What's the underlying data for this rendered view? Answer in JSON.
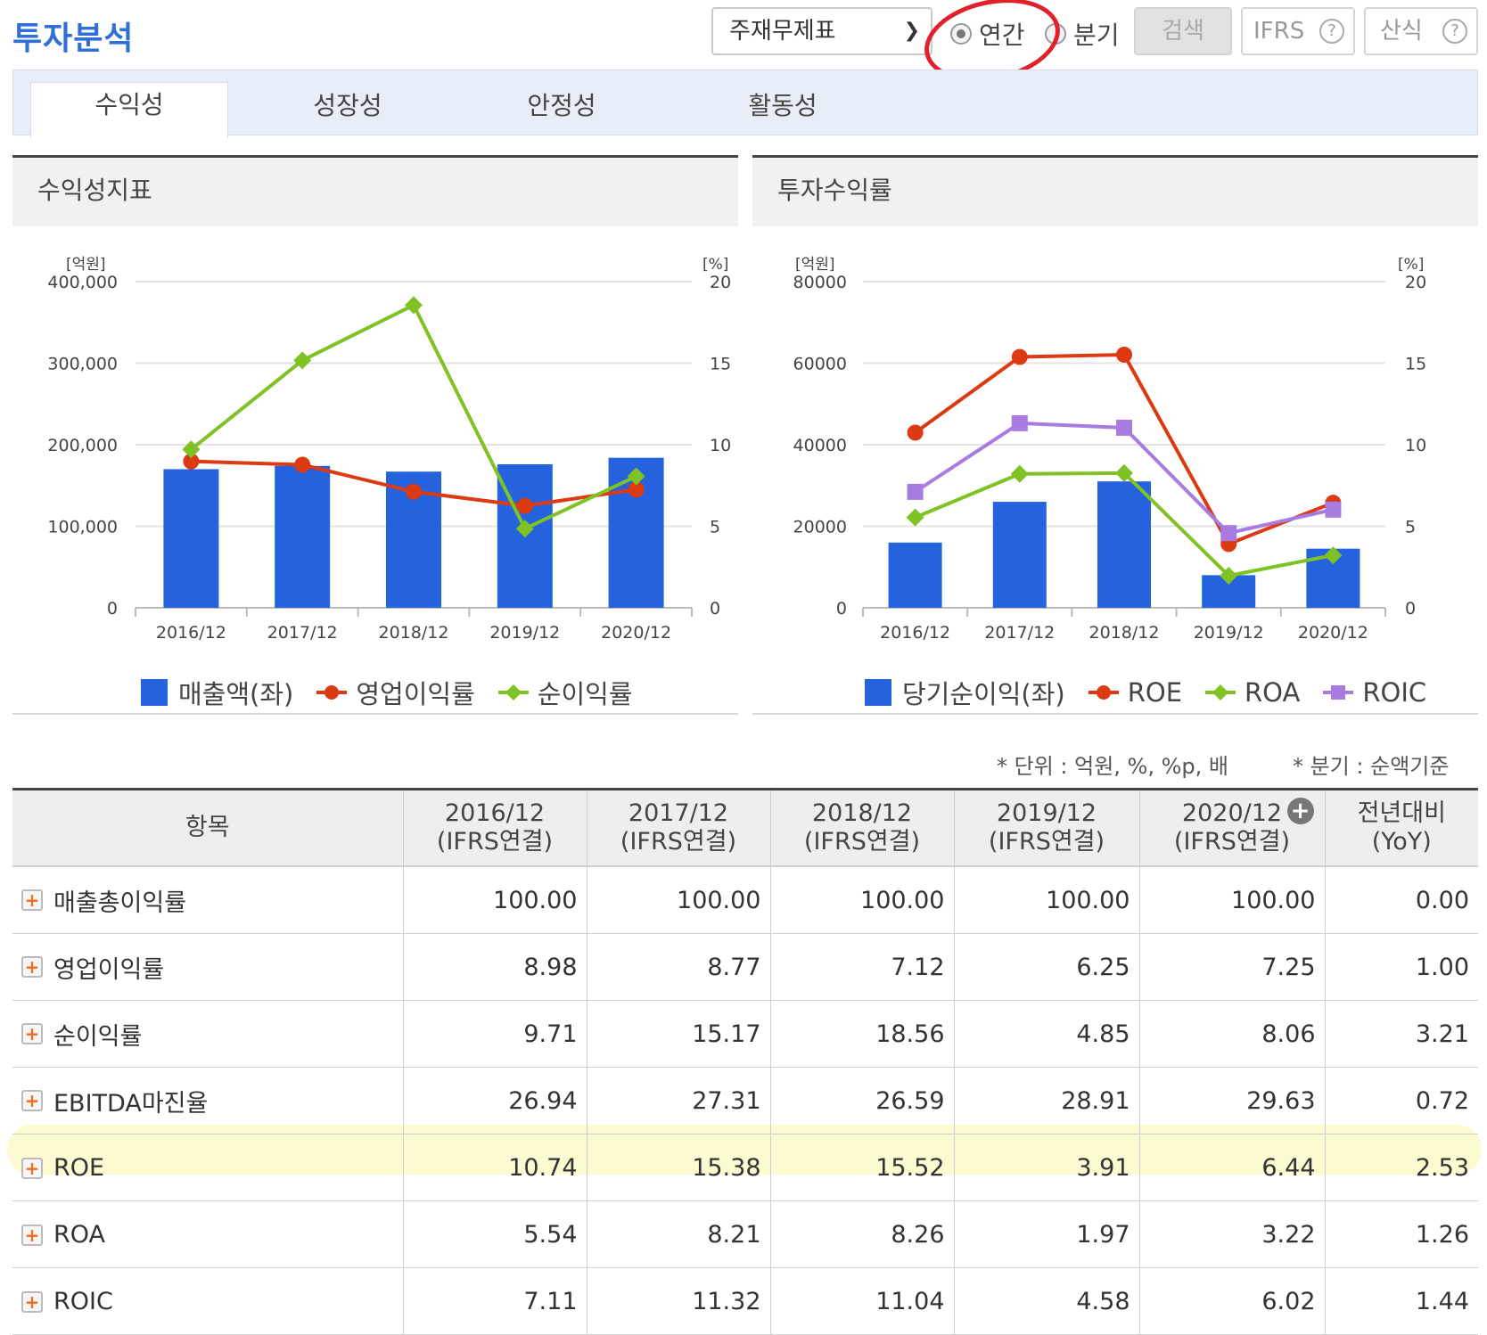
{
  "header": {
    "title": "투자분석",
    "report_select": "주재무제표",
    "radio_annual": "연간",
    "radio_quarter": "분기",
    "search_label": "검색",
    "ifrs_label": "IFRS",
    "formula_label": "산식",
    "annual_selected": true
  },
  "tabs": [
    "수익성",
    "성장성",
    "안정성",
    "활동성"
  ],
  "colors": {
    "bar": "#2563de",
    "red": "#dc3a12",
    "green": "#7fc224",
    "purple": "#a77be0",
    "title": "#2f6fd6"
  },
  "chart_data": [
    {
      "type": "bar+line",
      "title": "수익성지표",
      "categories": [
        "2016/12",
        "2017/12",
        "2018/12",
        "2019/12",
        "2020/12"
      ],
      "left_unit": "[억원]",
      "right_unit": "[%]",
      "left_ticks": [
        "0",
        "100,000",
        "200,000",
        "300,000",
        "400,000"
      ],
      "right_ticks": [
        "0",
        "5",
        "10",
        "15",
        "20"
      ],
      "ylim_left": [
        0,
        400000
      ],
      "ylim_right": [
        0,
        20
      ],
      "bars": {
        "name": "매출액(좌)",
        "values": [
          170000,
          174000,
          167000,
          176000,
          184000
        ]
      },
      "lines": [
        {
          "name": "영업이익률",
          "color": "#dc3a12",
          "marker": "circle",
          "values": [
            8.98,
            8.77,
            7.12,
            6.25,
            7.25
          ]
        },
        {
          "name": "순이익률",
          "color": "#7fc224",
          "marker": "diamond",
          "values": [
            9.71,
            15.17,
            18.56,
            4.85,
            8.06
          ]
        }
      ]
    },
    {
      "type": "bar+line",
      "title": "투자수익률",
      "categories": [
        "2016/12",
        "2017/12",
        "2018/12",
        "2019/12",
        "2020/12"
      ],
      "left_unit": "[억원]",
      "right_unit": "[%]",
      "left_ticks": [
        "0",
        "20000",
        "40000",
        "60000",
        "80000"
      ],
      "right_ticks": [
        "0",
        "5",
        "10",
        "15",
        "20"
      ],
      "ylim_left": [
        0,
        80000
      ],
      "ylim_right": [
        0,
        20
      ],
      "bars": {
        "name": "당기순이익(좌)",
        "values": [
          16000,
          26000,
          31000,
          8000,
          14500
        ]
      },
      "lines": [
        {
          "name": "ROE",
          "color": "#dc3a12",
          "marker": "circle",
          "values": [
            10.74,
            15.38,
            15.52,
            3.91,
            6.44
          ]
        },
        {
          "name": "ROA",
          "color": "#7fc224",
          "marker": "diamond",
          "values": [
            5.54,
            8.21,
            8.26,
            1.97,
            3.22
          ]
        },
        {
          "name": "ROIC",
          "color": "#a77be0",
          "marker": "square",
          "values": [
            7.11,
            11.32,
            11.04,
            4.58,
            6.02
          ]
        }
      ]
    }
  ],
  "notes": {
    "unit": "* 단위 : 억원, %, %p, 배",
    "quarter": "* 분기 : 순액기준"
  },
  "table": {
    "headers": [
      {
        "line1": "항목",
        "line2": ""
      },
      {
        "line1": "2016/12",
        "line2": "(IFRS연결)"
      },
      {
        "line1": "2017/12",
        "line2": "(IFRS연결)"
      },
      {
        "line1": "2018/12",
        "line2": "(IFRS연결)"
      },
      {
        "line1": "2019/12",
        "line2": "(IFRS연결)"
      },
      {
        "line1": "2020/12",
        "line2": "(IFRS연결)"
      },
      {
        "line1": "전년대비",
        "line2": "(YoY)"
      }
    ],
    "rows": [
      {
        "label": "매출총이익률",
        "values": [
          "100.00",
          "100.00",
          "100.00",
          "100.00",
          "100.00",
          "0.00"
        ]
      },
      {
        "label": "영업이익률",
        "values": [
          "8.98",
          "8.77",
          "7.12",
          "6.25",
          "7.25",
          "1.00"
        ]
      },
      {
        "label": "순이익률",
        "values": [
          "9.71",
          "15.17",
          "18.56",
          "4.85",
          "8.06",
          "3.21"
        ]
      },
      {
        "label": "EBITDA마진율",
        "values": [
          "26.94",
          "27.31",
          "26.59",
          "28.91",
          "29.63",
          "0.72"
        ]
      },
      {
        "label": "ROE",
        "values": [
          "10.74",
          "15.38",
          "15.52",
          "3.91",
          "6.44",
          "2.53"
        ]
      },
      {
        "label": "ROA",
        "values": [
          "5.54",
          "8.21",
          "8.26",
          "1.97",
          "3.22",
          "1.26"
        ]
      },
      {
        "label": "ROIC",
        "values": [
          "7.11",
          "11.32",
          "11.04",
          "4.58",
          "6.02",
          "1.44"
        ]
      }
    ],
    "highlighted_row": "ROE"
  }
}
